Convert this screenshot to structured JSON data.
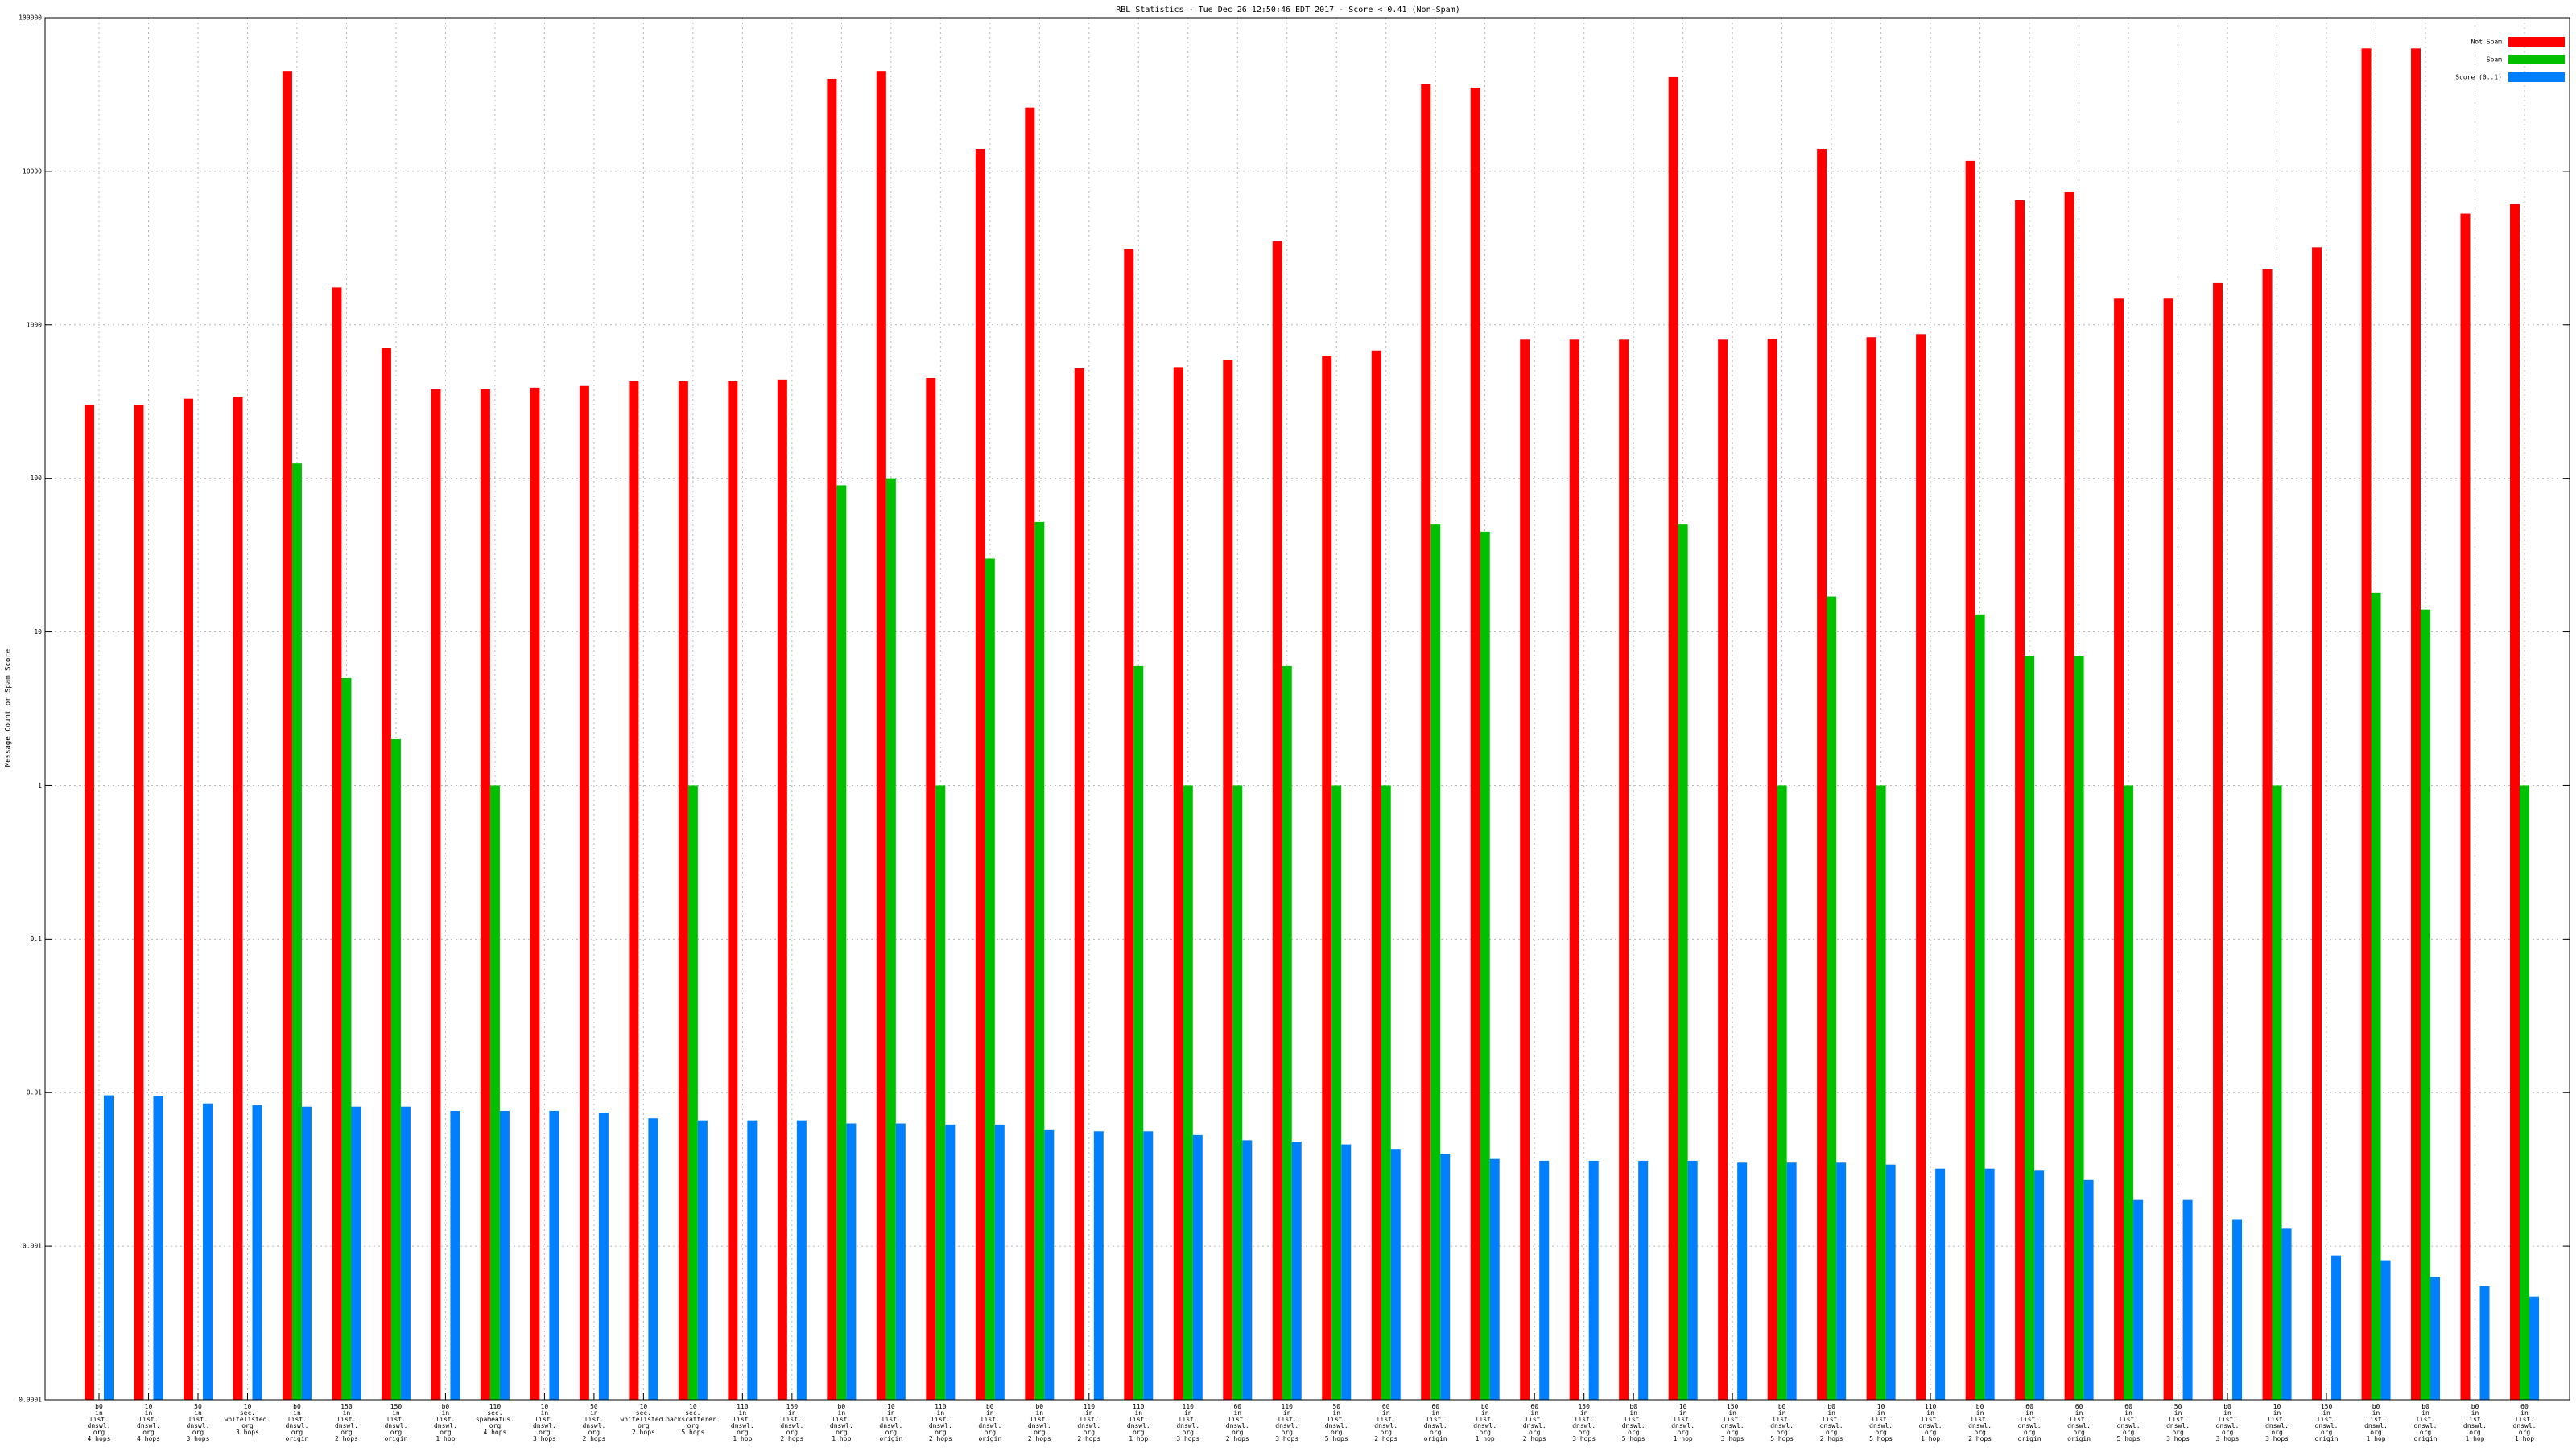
{
  "chart_data": {
    "type": "bar",
    "title": "RBL Statistics - Tue Dec 26 12:50:46 EDT 2017 - Score < 0.41 (Non-Spam)",
    "y_label": "Message Count or Spam Score",
    "log_y": true,
    "grid": true,
    "legend": "top-right",
    "ylim": [
      0.0001,
      100000
    ],
    "yticks": [
      0.0001,
      0.001,
      0.01,
      0.1,
      1,
      10,
      100,
      1000,
      10000,
      100000
    ],
    "categories": [
      "b0\nin\nlist.\ndnswl.\norg\n4 hops",
      "10\nin\nlist.\ndnswl.\norg\n4 hops",
      "50\nin\nlist.\ndnswl.\norg\n3 hops",
      "10\nsec.\nwhitelisted.\norg\n3 hops",
      "b0\nin\nlist.\ndnswl.\norg\norigin",
      "150\nin\nlist.\ndnswl.\norg\n2 hops",
      "150\nin\nlist.\ndnswl.\norg\norigin",
      "b0\nin\nlist.\ndnswl.\norg\n1 hop",
      "110\nsec.\nspameatus.\norg\n4 hops",
      "10\nin\nlist.\ndnswl.\norg\n3 hops",
      "50\nin\nlist.\ndnswl.\norg\n2 hops",
      "10\nsec.\nwhitelisted.\norg\n2 hops",
      "10\nsec.\nbackscatterer.\norg\n5 hops",
      "110\nin\nlist.\ndnswl.\norg\n1 hop",
      "150\nin\nlist.\ndnswl.\norg\n2 hops",
      "b0\nin\nlist.\ndnswl.\norg\n1 hop",
      "10\nin\nlist.\ndnswl.\norg\norigin",
      "110\nin\nlist.\ndnswl.\norg\n2 hops",
      "b0\nin\nlist.\ndnswl.\norg\norigin",
      "b0\nin\nlist.\ndnswl.\norg\n2 hops",
      "110\nin\nlist.\ndnswl.\norg\n2 hops",
      "110\nin\nlist.\ndnswl.\norg\n1 hop",
      "110\nin\nlist.\ndnswl.\norg\n3 hops",
      "60\nin\nlist.\ndnswl.\norg\n2 hops",
      "110\nin\nlist.\ndnswl.\norg\n3 hops",
      "50\nin\nlist.\ndnswl.\norg\n5 hops",
      "60\nin\nlist.\ndnswl.\norg\n2 hops",
      "60\nin\nlist.\ndnswl.\norg\norigin",
      "b0\nin\nlist.\ndnswl.\norg\n1 hop",
      "60\nin\nlist.\ndnswl.\norg\n2 hops",
      "150\nin\nlist.\ndnswl.\norg\n3 hops",
      "b0\nin\nlist.\ndnswl.\norg\n5 hops",
      "10\nin\nlist.\ndnswl.\norg\n1 hop",
      "150\nin\nlist.\ndnswl.\norg\n3 hops",
      "b0\nin\nlist.\ndnswl.\norg\n5 hops",
      "b0\nin\nlist.\ndnswl.\norg\n2 hops",
      "10\nin\nlist.\ndnswl.\norg\n5 hops",
      "110\nin\nlist.\ndnswl.\norg\n1 hop",
      "b0\nin\nlist.\ndnswl.\norg\n2 hops",
      "60\nin\nlist.\ndnswl.\norg\norigin",
      "60\nin\nlist.\ndnswl.\norg\norigin",
      "60\nin\nlist.\ndnswl.\norg\n5 hops",
      "50\nin\nlist.\ndnswl.\norg\n3 hops",
      "b0\nin\nlist.\ndnswl.\norg\n3 hops",
      "10\nin\nlist.\ndnswl.\norg\n3 hops",
      "150\nin\nlist.\ndnswl.\norg\norigin",
      "b0\nin\nlist.\ndnswl.\norg\n1 hop",
      "b0\nin\nlist.\ndnswl.\norg\norigin",
      "b0\nin\nlist.\ndnswl.\norg\n1 hop",
      "60\nin\nlist.\ndnswl.\norg\n1 hop"
    ],
    "series": [
      {
        "name": "Not Spam",
        "color": "#ff0000",
        "values": [
          300,
          300,
          330,
          340,
          45000,
          1750,
          710,
          380,
          380,
          390,
          400,
          430,
          430,
          430,
          440,
          40000,
          45000,
          450,
          14000,
          26000,
          520,
          3100,
          530,
          590,
          3500,
          630,
          680,
          37000,
          35000,
          800,
          800,
          800,
          41000,
          800,
          810,
          14000,
          830,
          870,
          11700,
          6500,
          7300,
          1480,
          1480,
          1870,
          2300,
          3200,
          63000,
          63000,
          5300,
          6100
        ]
      },
      {
        "name": "Spam",
        "color": "#00c000",
        "values": [
          null,
          null,
          null,
          null,
          125,
          5,
          2,
          null,
          1,
          null,
          null,
          null,
          1,
          null,
          null,
          90,
          100,
          1,
          30,
          52,
          null,
          6,
          1,
          1,
          6,
          1,
          1,
          50,
          45,
          null,
          null,
          null,
          50,
          null,
          1,
          17,
          1,
          null,
          13,
          7,
          7,
          1,
          null,
          null,
          1,
          null,
          18,
          14,
          null,
          1
        ]
      },
      {
        "name": "Score (0..1)",
        "color": "#0080ff",
        "values": [
          0.0096,
          0.0095,
          0.0085,
          0.0083,
          0.0081,
          0.0081,
          0.0081,
          0.0076,
          0.0076,
          0.0076,
          0.0074,
          0.0068,
          0.0066,
          0.0066,
          0.0066,
          0.0063,
          0.0063,
          0.0062,
          0.0062,
          0.0057,
          0.0056,
          0.0056,
          0.0053,
          0.0049,
          0.0048,
          0.0046,
          0.0043,
          0.004,
          0.0037,
          0.0036,
          0.0036,
          0.0036,
          0.0036,
          0.0035,
          0.0035,
          0.0035,
          0.0034,
          0.0032,
          0.0032,
          0.0031,
          0.0027,
          0.002,
          0.002,
          0.0015,
          0.0013,
          0.00087,
          0.00081,
          0.00063,
          0.00055,
          0.00047
        ]
      }
    ]
  }
}
